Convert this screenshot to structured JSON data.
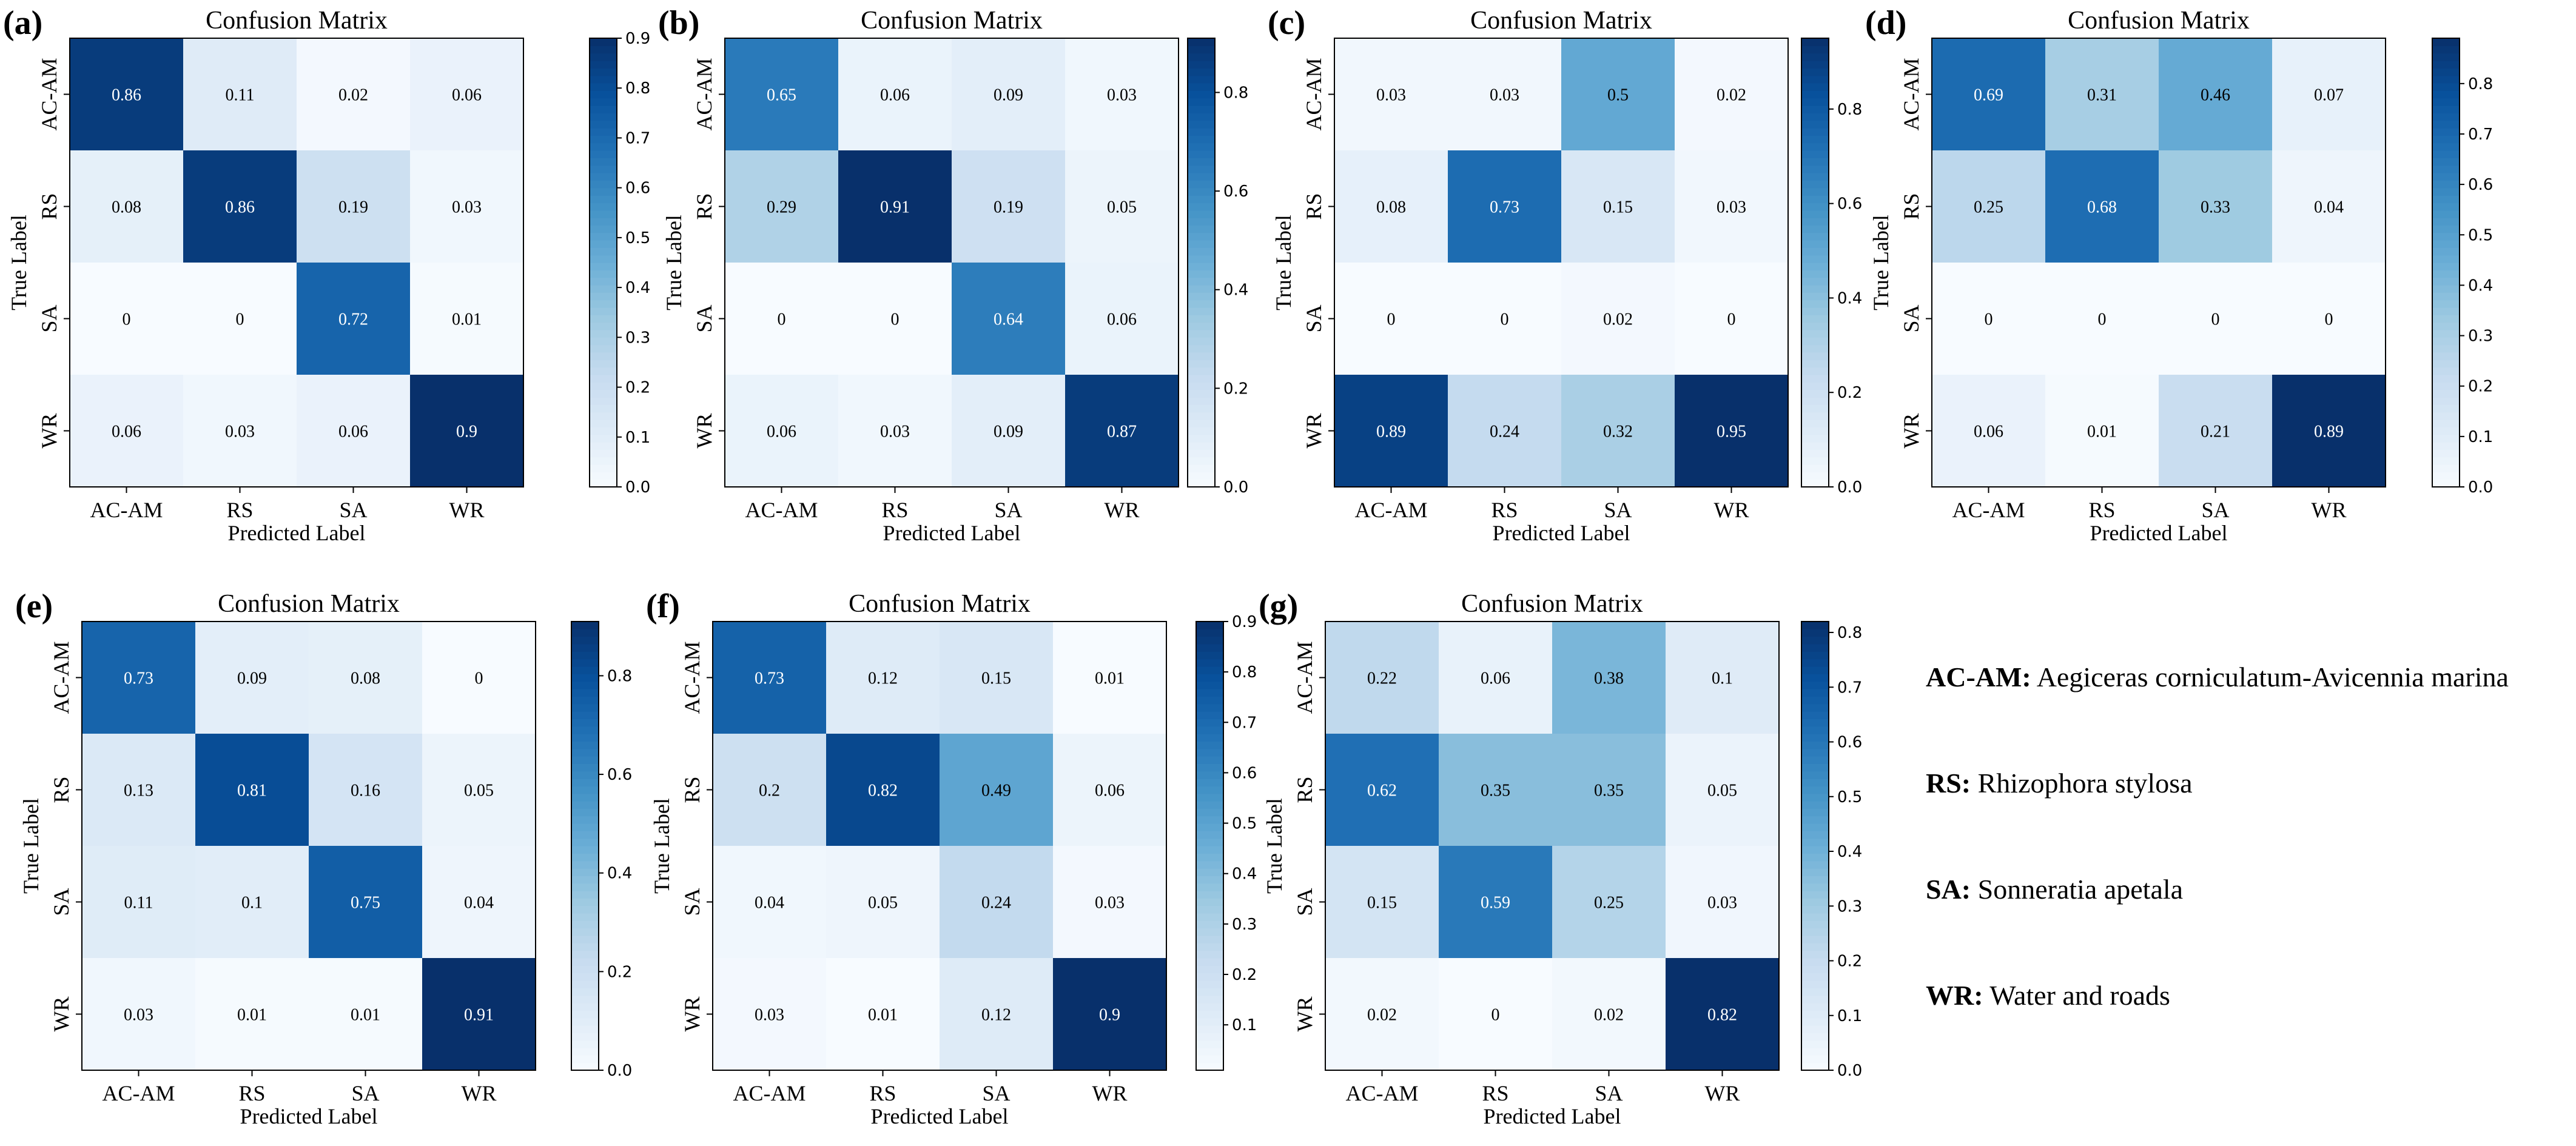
{
  "chart_data": [
    {
      "type": "heatmap",
      "panel": "(a)",
      "title": "Confusion Matrix",
      "xlabel": "Predicted Label",
      "ylabel": "True Label",
      "categories": [
        "AC-AM",
        "RS",
        "SA",
        "WR"
      ],
      "values": [
        [
          0.86,
          0.11,
          0.02,
          0.06
        ],
        [
          0.08,
          0.86,
          0.19,
          0.03
        ],
        [
          0.0,
          0.0,
          0.72,
          0.01
        ],
        [
          0.06,
          0.03,
          0.06,
          0.9
        ]
      ],
      "colorbar": {
        "range": [
          0,
          0.9
        ],
        "ticks": [
          0.0,
          0.1,
          0.2,
          0.3,
          0.4,
          0.5,
          0.6,
          0.7,
          0.8,
          0.9
        ],
        "tick_labels": [
          "0.0",
          "0.1",
          "0.2",
          "0.3",
          "0.4",
          "0.5",
          "0.6",
          "0.7",
          "0.8",
          "0.9"
        ]
      }
    },
    {
      "type": "heatmap",
      "panel": "(b)",
      "title": "Confusion Matrix",
      "xlabel": "Predicted Label",
      "ylabel": "True Label",
      "categories": [
        "AC-AM",
        "RS",
        "SA",
        "WR"
      ],
      "values": [
        [
          0.65,
          0.06,
          0.09,
          0.03
        ],
        [
          0.29,
          0.91,
          0.19,
          0.05
        ],
        [
          0.0,
          0.0,
          0.64,
          0.06
        ],
        [
          0.06,
          0.03,
          0.09,
          0.87
        ]
      ],
      "colorbar": {
        "range": [
          0,
          0.91
        ],
        "ticks": [
          0.0,
          0.2,
          0.4,
          0.6,
          0.8
        ],
        "tick_labels": [
          "0.0",
          "0.2",
          "0.4",
          "0.6",
          "0.8"
        ]
      }
    },
    {
      "type": "heatmap",
      "panel": "(c)",
      "title": "Confusion Matrix",
      "xlabel": "Predicted Label",
      "ylabel": "True Label",
      "categories": [
        "AC-AM",
        "RS",
        "SA",
        "WR"
      ],
      "values": [
        [
          0.03,
          0.03,
          0.5,
          0.02
        ],
        [
          0.08,
          0.73,
          0.15,
          0.03
        ],
        [
          0.0,
          0.0,
          0.02,
          0.0
        ],
        [
          0.89,
          0.24,
          0.32,
          0.95
        ]
      ],
      "colorbar": {
        "range": [
          0,
          0.95
        ],
        "ticks": [
          0.0,
          0.2,
          0.4,
          0.6,
          0.8
        ],
        "tick_labels": [
          "0.0",
          "0.2",
          "0.4",
          "0.6",
          "0.8"
        ]
      }
    },
    {
      "type": "heatmap",
      "panel": "(d)",
      "title": "Confusion Matrix",
      "xlabel": "Predicted Label",
      "ylabel": "True Label",
      "categories": [
        "AC-AM",
        "RS",
        "SA",
        "WR"
      ],
      "values": [
        [
          0.69,
          0.31,
          0.46,
          0.07
        ],
        [
          0.25,
          0.68,
          0.33,
          0.04
        ],
        [
          0.0,
          0.0,
          0.0,
          0.0
        ],
        [
          0.06,
          0.01,
          0.21,
          0.89
        ]
      ],
      "colorbar": {
        "range": [
          0,
          0.89
        ],
        "ticks": [
          0.0,
          0.1,
          0.2,
          0.3,
          0.4,
          0.5,
          0.6,
          0.7,
          0.8
        ],
        "tick_labels": [
          "0.0",
          "0.1",
          "0.2",
          "0.3",
          "0.4",
          "0.5",
          "0.6",
          "0.7",
          "0.8"
        ]
      }
    },
    {
      "type": "heatmap",
      "panel": "(e)",
      "title": "Confusion Matrix",
      "xlabel": "Predicted Label",
      "ylabel": "True Label",
      "categories": [
        "AC-AM",
        "RS",
        "SA",
        "WR"
      ],
      "values": [
        [
          0.73,
          0.09,
          0.08,
          0.0
        ],
        [
          0.13,
          0.81,
          0.16,
          0.05
        ],
        [
          0.11,
          0.1,
          0.75,
          0.04
        ],
        [
          0.03,
          0.01,
          0.01,
          0.91
        ]
      ],
      "colorbar": {
        "range": [
          0,
          0.91
        ],
        "ticks": [
          0.0,
          0.2,
          0.4,
          0.6,
          0.8
        ],
        "tick_labels": [
          "0.0",
          "0.2",
          "0.4",
          "0.6",
          "0.8"
        ]
      }
    },
    {
      "type": "heatmap",
      "panel": "(f)",
      "title": "Confusion Matrix",
      "xlabel": "Predicted Label",
      "ylabel": "True Label",
      "categories": [
        "AC-AM",
        "RS",
        "SA",
        "WR"
      ],
      "values": [
        [
          0.73,
          0.12,
          0.15,
          0.01
        ],
        [
          0.2,
          0.82,
          0.49,
          0.06
        ],
        [
          0.04,
          0.05,
          0.24,
          0.03
        ],
        [
          0.03,
          0.01,
          0.12,
          0.9
        ]
      ],
      "colorbar": {
        "range": [
          0.01,
          0.9
        ],
        "ticks": [
          0.1,
          0.2,
          0.3,
          0.4,
          0.5,
          0.6,
          0.7,
          0.8,
          0.9
        ],
        "tick_labels": [
          "0.1",
          "0.2",
          "0.3",
          "0.4",
          "0.5",
          "0.6",
          "0.7",
          "0.8",
          "0.9"
        ]
      }
    },
    {
      "type": "heatmap",
      "panel": "(g)",
      "title": "Confusion Matrix",
      "xlabel": "Predicted Label",
      "ylabel": "True Label",
      "categories": [
        "AC-AM",
        "RS",
        "SA",
        "WR"
      ],
      "values": [
        [
          0.22,
          0.06,
          0.38,
          0.1
        ],
        [
          0.62,
          0.35,
          0.35,
          0.05
        ],
        [
          0.15,
          0.59,
          0.25,
          0.03
        ],
        [
          0.02,
          0.0,
          0.02,
          0.82
        ]
      ],
      "colorbar": {
        "range": [
          0,
          0.82
        ],
        "ticks": [
          0.0,
          0.1,
          0.2,
          0.3,
          0.4,
          0.5,
          0.6,
          0.7,
          0.8
        ],
        "tick_labels": [
          "0.0",
          "0.1",
          "0.2",
          "0.3",
          "0.4",
          "0.5",
          "0.6",
          "0.7",
          "0.8"
        ]
      }
    }
  ],
  "legend": {
    "items": [
      {
        "key": "AC-AM:",
        "desc": "Aegiceras corniculatum-Avicennia marina"
      },
      {
        "key": "RS:",
        "desc": "Rhizophora stylosa"
      },
      {
        "key": "SA:",
        "desc": "Sonneratia apetala"
      },
      {
        "key": "WR:",
        "desc": "Water and roads"
      }
    ]
  },
  "colors": {
    "cmap": [
      "#f7fbff",
      "#deebf7",
      "#c6dbef",
      "#9ecae1",
      "#6baed6",
      "#4292c6",
      "#2171b5",
      "#08519c",
      "#08306b"
    ],
    "axis": "#000000",
    "text_dark": "#000000",
    "text_light": "#ffffff"
  }
}
